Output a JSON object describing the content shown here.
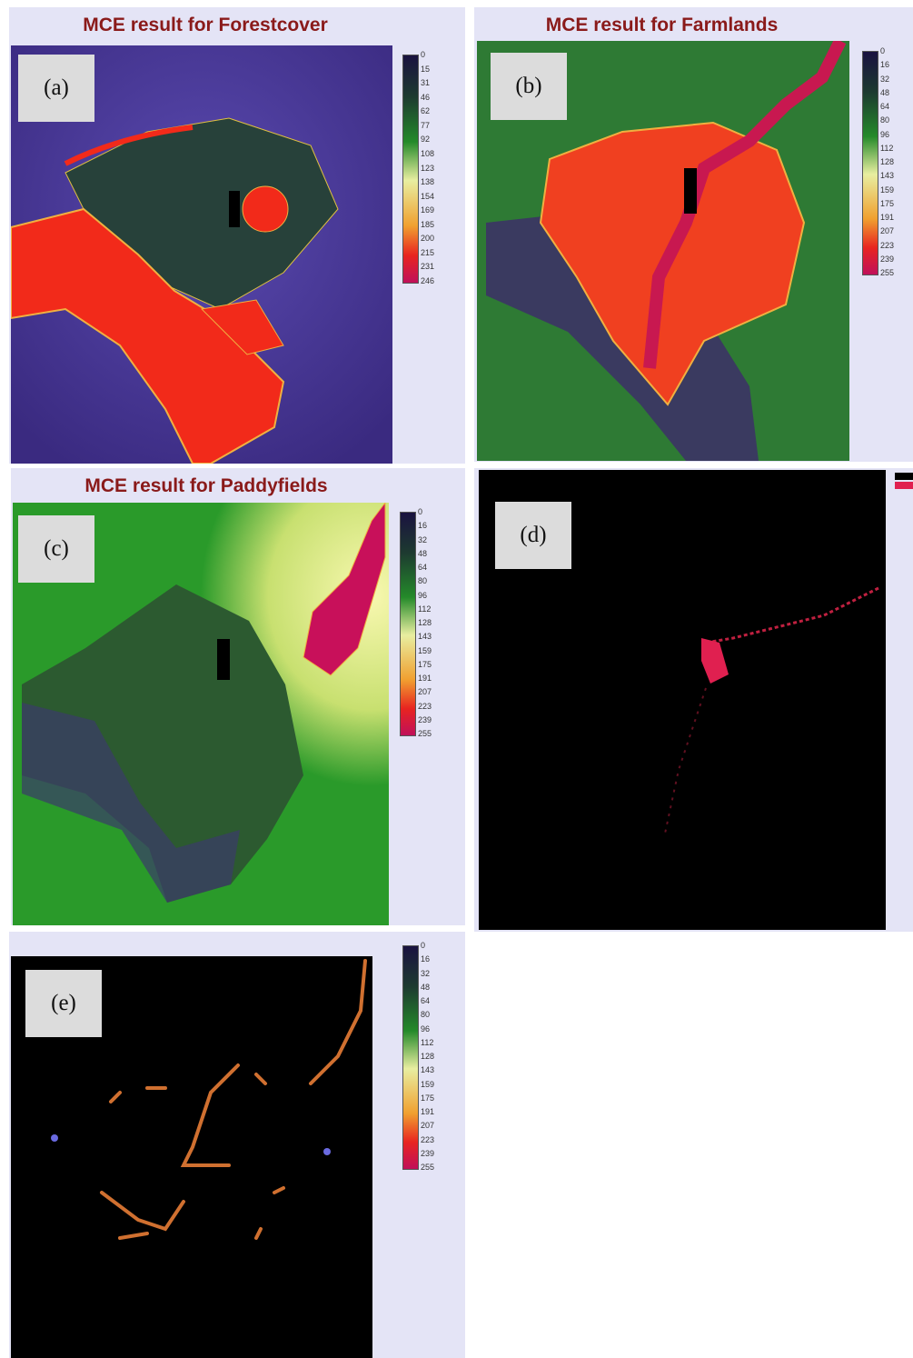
{
  "panels": [
    {
      "label": "(a)",
      "title": "MCE result for Forestcover",
      "legend": {
        "ticks": [
          0,
          15,
          31,
          46,
          62,
          77,
          92,
          108,
          123,
          138,
          154,
          169,
          185,
          200,
          215,
          231,
          246
        ]
      }
    },
    {
      "label": "(b)",
      "title": "MCE result for Farmlands",
      "legend": {
        "ticks": [
          0,
          16,
          32,
          48,
          64,
          80,
          96,
          112,
          128,
          143,
          159,
          175,
          191,
          207,
          223,
          239,
          255
        ]
      }
    },
    {
      "label": "(c)",
      "title": "MCE result for Paddyfields",
      "legend": {
        "ticks": [
          0,
          16,
          32,
          48,
          64,
          80,
          96,
          112,
          128,
          143,
          159,
          175,
          191,
          207,
          223,
          239,
          255
        ]
      }
    },
    {
      "label": "(d)"
    },
    {
      "label": "(e)",
      "legend": {
        "ticks": [
          0,
          16,
          32,
          48,
          64,
          80,
          96,
          112,
          128,
          143,
          159,
          175,
          191,
          207,
          223,
          239,
          255
        ]
      }
    }
  ]
}
